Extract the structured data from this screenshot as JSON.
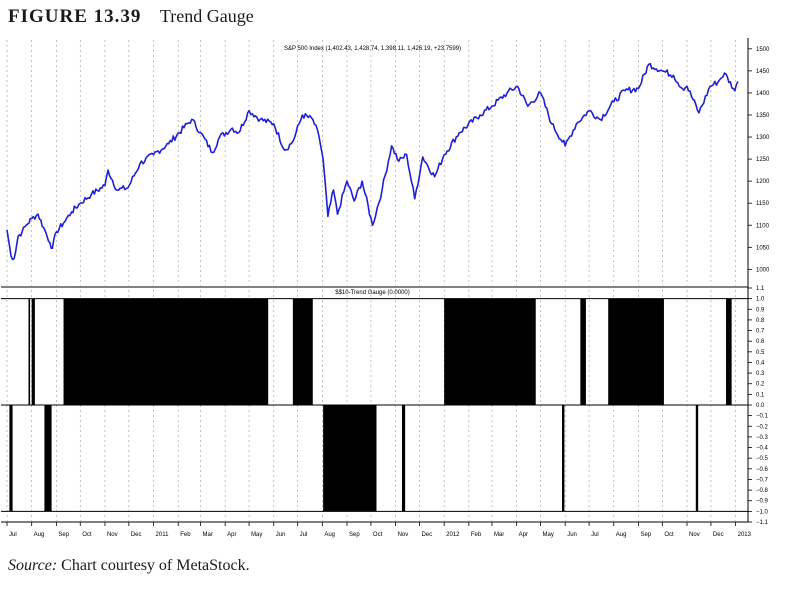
{
  "figure": {
    "label": "FIGURE 13.39",
    "title": "Trend Gauge"
  },
  "source": {
    "prefix": "Source:",
    "text": "Chart courtesy of MetaStock."
  },
  "chart_data": [
    {
      "type": "line",
      "title": "S&P 500 Index (1,402.43, 1,428.74, 1,398.11, 1,426.19, +23.7599)",
      "color": "#1f1fd6",
      "ylim": [
        960,
        1520
      ],
      "yticks": [
        1000,
        1050,
        1100,
        1150,
        1200,
        1250,
        1300,
        1350,
        1400,
        1450,
        1500
      ],
      "x_axis": {
        "start": "2010-07-01",
        "end": "2013-01-04"
      },
      "series": [
        {
          "points": [
            [
              "2010-07-01",
              1090
            ],
            [
              "2010-07-06",
              1030
            ],
            [
              "2010-07-10",
              1025
            ],
            [
              "2010-07-15",
              1075
            ],
            [
              "2010-07-20",
              1085
            ],
            [
              "2010-07-25",
              1100
            ],
            [
              "2010-08-01",
              1115
            ],
            [
              "2010-08-09",
              1125
            ],
            [
              "2010-08-16",
              1095
            ],
            [
              "2010-08-24",
              1060
            ],
            [
              "2010-08-27",
              1048
            ],
            [
              "2010-09-01",
              1085
            ],
            [
              "2010-09-10",
              1105
            ],
            [
              "2010-09-20",
              1130
            ],
            [
              "2010-10-01",
              1150
            ],
            [
              "2010-10-15",
              1170
            ],
            [
              "2010-11-01",
              1190
            ],
            [
              "2010-11-05",
              1225
            ],
            [
              "2010-11-16",
              1180
            ],
            [
              "2010-11-30",
              1185
            ],
            [
              "2010-12-15",
              1240
            ],
            [
              "2011-01-01",
              1260
            ],
            [
              "2011-01-20",
              1285
            ],
            [
              "2011-02-18",
              1340
            ],
            [
              "2011-03-01",
              1310
            ],
            [
              "2011-03-16",
              1265
            ],
            [
              "2011-03-25",
              1300
            ],
            [
              "2011-04-10",
              1320
            ],
            [
              "2011-04-18",
              1310
            ],
            [
              "2011-05-01",
              1360
            ],
            [
              "2011-05-15",
              1340
            ],
            [
              "2011-06-01",
              1330
            ],
            [
              "2011-06-15",
              1270
            ],
            [
              "2011-06-25",
              1290
            ],
            [
              "2011-07-07",
              1350
            ],
            [
              "2011-07-20",
              1340
            ],
            [
              "2011-07-28",
              1300
            ],
            [
              "2011-08-02",
              1250
            ],
            [
              "2011-08-08",
              1120
            ],
            [
              "2011-08-15",
              1180
            ],
            [
              "2011-08-20",
              1125
            ],
            [
              "2011-09-01",
              1200
            ],
            [
              "2011-09-10",
              1155
            ],
            [
              "2011-09-20",
              1200
            ],
            [
              "2011-10-03",
              1100
            ],
            [
              "2011-10-15",
              1180
            ],
            [
              "2011-10-27",
              1280
            ],
            [
              "2011-11-05",
              1245
            ],
            [
              "2011-11-15",
              1260
            ],
            [
              "2011-11-25",
              1160
            ],
            [
              "2011-12-05",
              1255
            ],
            [
              "2011-12-20",
              1210
            ],
            [
              "2012-01-01",
              1260
            ],
            [
              "2012-01-20",
              1310
            ],
            [
              "2012-02-15",
              1350
            ],
            [
              "2012-03-01",
              1370
            ],
            [
              "2012-03-20",
              1400
            ],
            [
              "2012-04-02",
              1415
            ],
            [
              "2012-04-15",
              1370
            ],
            [
              "2012-05-01",
              1400
            ],
            [
              "2012-05-15",
              1330
            ],
            [
              "2012-06-01",
              1280
            ],
            [
              "2012-06-15",
              1330
            ],
            [
              "2012-07-01",
              1360
            ],
            [
              "2012-07-15",
              1340
            ],
            [
              "2012-08-01",
              1380
            ],
            [
              "2012-08-15",
              1405
            ],
            [
              "2012-09-01",
              1410
            ],
            [
              "2012-09-14",
              1465
            ],
            [
              "2012-10-01",
              1450
            ],
            [
              "2012-10-15",
              1440
            ],
            [
              "2012-10-26",
              1410
            ],
            [
              "2012-11-01",
              1415
            ],
            [
              "2012-11-16",
              1355
            ],
            [
              "2012-11-30",
              1415
            ],
            [
              "2012-12-10",
              1425
            ],
            [
              "2012-12-18",
              1445
            ],
            [
              "2012-12-31",
              1405
            ],
            [
              "2013-01-04",
              1426
            ]
          ]
        }
      ],
      "grid": "vertical dashed at month boundaries"
    },
    {
      "type": "bar",
      "title": "$$10-Trend Gauge (0.0000)",
      "color": "#000000",
      "ylim": [
        -1.1,
        1.1
      ],
      "yticks": [
        1.1,
        1.0,
        0.9,
        0.8,
        0.7,
        0.6,
        0.5,
        0.4,
        0.3,
        0.2,
        0.1,
        0.0,
        -0.1,
        -0.2,
        -0.3,
        -0.4,
        -0.5,
        -0.6,
        -0.7,
        -0.8,
        -0.9,
        -1.0,
        -1.1
      ],
      "x_axis": {
        "start": "2010-07-01",
        "end": "2013-01-04"
      },
      "blocks": [
        {
          "start": "2010-07-04",
          "end": "2010-07-08",
          "value": -1
        },
        {
          "start": "2010-07-28",
          "end": "2010-07-30",
          "value": 1
        },
        {
          "start": "2010-08-01",
          "end": "2010-08-05",
          "value": 1
        },
        {
          "start": "2010-08-17",
          "end": "2010-08-26",
          "value": -1
        },
        {
          "start": "2010-09-10",
          "end": "2011-05-25",
          "value": 1
        },
        {
          "start": "2011-06-25",
          "end": "2011-07-20",
          "value": 1
        },
        {
          "start": "2011-08-02",
          "end": "2011-10-08",
          "value": -1
        },
        {
          "start": "2011-11-09",
          "end": "2011-11-13",
          "value": -1
        },
        {
          "start": "2012-01-01",
          "end": "2012-04-25",
          "value": 1
        },
        {
          "start": "2012-05-28",
          "end": "2012-05-31",
          "value": -1
        },
        {
          "start": "2012-06-20",
          "end": "2012-06-27",
          "value": 1
        },
        {
          "start": "2012-07-25",
          "end": "2012-10-03",
          "value": 1
        },
        {
          "start": "2012-11-12",
          "end": "2012-11-15",
          "value": -1
        },
        {
          "start": "2012-12-20",
          "end": "2012-12-27",
          "value": 1
        }
      ],
      "grid": "vertical dashed at month boundaries"
    }
  ],
  "time_axis": {
    "labels": [
      [
        "2010-07-01",
        "Jul"
      ],
      [
        "2010-08-01",
        "Aug"
      ],
      [
        "2010-09-01",
        "Sep"
      ],
      [
        "2010-10-01",
        "Oct"
      ],
      [
        "2010-11-01",
        "Nov"
      ],
      [
        "2010-12-01",
        "Dec"
      ],
      [
        "2011-01-01",
        "2011"
      ],
      [
        "2011-02-01",
        "Feb"
      ],
      [
        "2011-03-01",
        "Mar"
      ],
      [
        "2011-04-01",
        "Apr"
      ],
      [
        "2011-05-01",
        "May"
      ],
      [
        "2011-06-01",
        "Jun"
      ],
      [
        "2011-07-01",
        "Jul"
      ],
      [
        "2011-08-01",
        "Aug"
      ],
      [
        "2011-09-01",
        "Sep"
      ],
      [
        "2011-10-01",
        "Oct"
      ],
      [
        "2011-11-01",
        "Nov"
      ],
      [
        "2011-12-01",
        "Dec"
      ],
      [
        "2012-01-01",
        "2012"
      ],
      [
        "2012-02-01",
        "Feb"
      ],
      [
        "2012-03-01",
        "Mar"
      ],
      [
        "2012-04-01",
        "Apr"
      ],
      [
        "2012-05-01",
        "May"
      ],
      [
        "2012-06-01",
        "Jun"
      ],
      [
        "2012-07-01",
        "Jul"
      ],
      [
        "2012-08-01",
        "Aug"
      ],
      [
        "2012-09-01",
        "Sep"
      ],
      [
        "2012-10-01",
        "Oct"
      ],
      [
        "2012-11-01",
        "Nov"
      ],
      [
        "2012-12-01",
        "Dec"
      ],
      [
        "2013-01-01",
        "2013"
      ]
    ]
  }
}
